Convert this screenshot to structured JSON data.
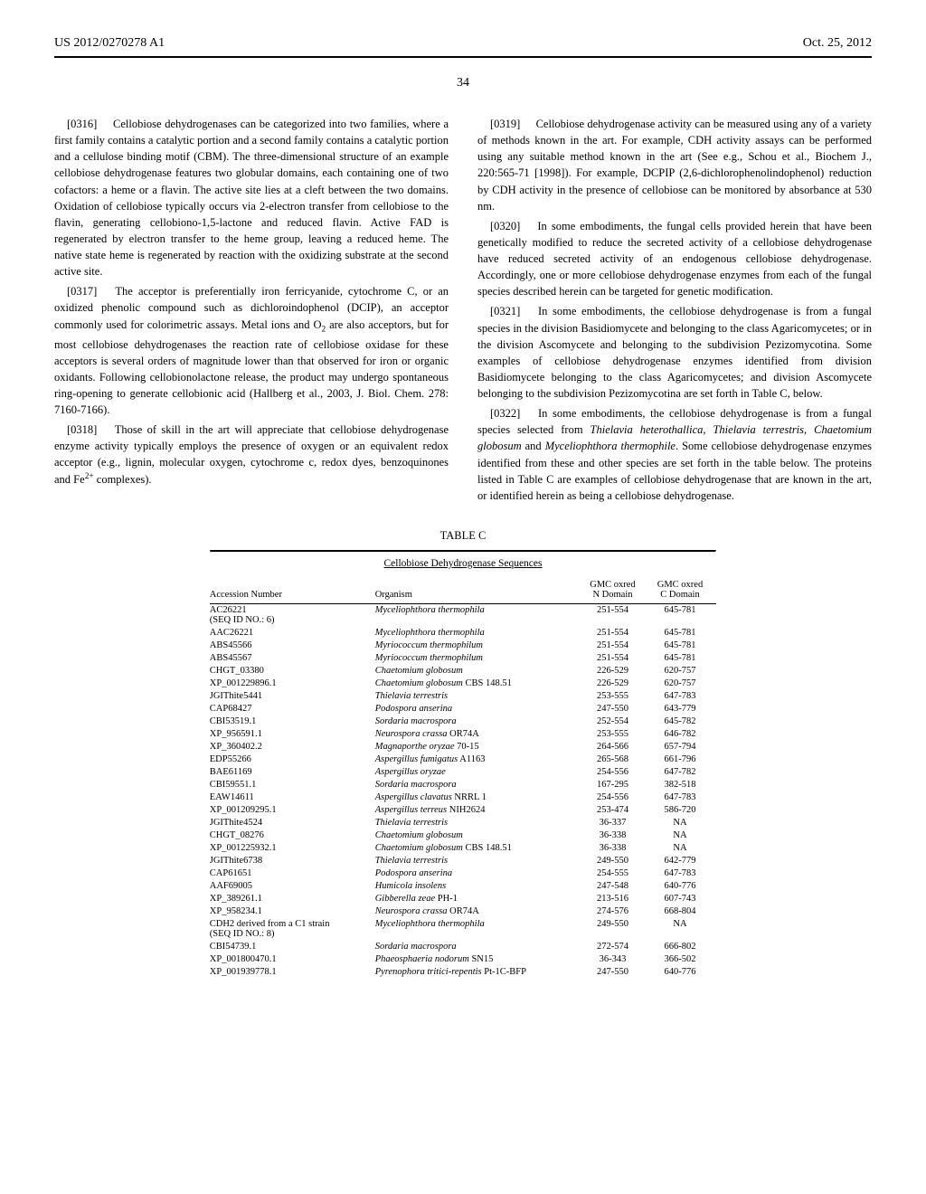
{
  "header": {
    "left": "US 2012/0270278 A1",
    "right": "Oct. 25, 2012"
  },
  "page_number": "34",
  "left_column": {
    "p1_label": "[0316]",
    "p1": "Cellobiose dehydrogenases can be categorized into two families, where a first family contains a catalytic portion and a second family contains a catalytic portion and a cellulose binding motif (CBM). The three-dimensional structure of an example cellobiose dehydrogenase features two globular domains, each containing one of two cofactors: a heme or a flavin. The active site lies at a cleft between the two domains. Oxidation of cellobiose typically occurs via 2-electron transfer from cellobiose to the flavin, generating cellobiono-1,5-lactone and reduced flavin. Active FAD is regenerated by electron transfer to the heme group, leaving a reduced heme. The native state heme is regenerated by reaction with the oxidizing substrate at the second active site.",
    "p2_label": "[0317]",
    "p2a": "The acceptor is preferentially iron ferricyanide, cytochrome C, or an oxidized phenolic compound such as dichloroindophenol (DCIP), an acceptor commonly used for colorimetric assays. Metal ions and O",
    "p2b": " are also acceptors, but for most cellobiose dehydrogenases the reaction rate of cellobiose oxidase for these acceptors is several orders of magnitude lower than that observed for iron or organic oxidants. Following cellobionolactone release, the product may undergo spontaneous ring-opening to generate cellobionic acid (Hallberg et al., 2003, J. Biol. Chem. 278: 7160-7166).",
    "p3_label": "[0318]",
    "p3a": "Those of skill in the art will appreciate that cellobiose dehydrogenase enzyme activity typically employs the presence of oxygen or an equivalent redox acceptor (e.g., lignin, molecular oxygen, cytochrome c, redox dyes, benzoquinones and Fe",
    "p3b": " complexes)."
  },
  "right_column": {
    "p1_label": "[0319]",
    "p1": "Cellobiose dehydrogenase activity can be measured using any of a variety of methods known in the art. For example, CDH activity assays can be performed using any suitable method known in the art (See e.g., Schou et al., Biochem J., 220:565-71 [1998]). For example, DCPIP (2,6-dichlorophenolindophenol) reduction by CDH activity in the presence of cellobiose can be monitored by absorbance at 530 nm.",
    "p2_label": "[0320]",
    "p2": "In some embodiments, the fungal cells provided herein that have been genetically modified to reduce the secreted activity of a cellobiose dehydrogenase have reduced secreted activity of an endogenous cellobiose dehydrogenase. Accordingly, one or more cellobiose dehydrogenase enzymes from each of the fungal species described herein can be targeted for genetic modification.",
    "p3_label": "[0321]",
    "p3": "In some embodiments, the cellobiose dehydrogenase is from a fungal species in the division Basidiomycete and belonging to the class Agaricomycetes; or in the division Ascomycete and belonging to the subdivision Pezizomycotina. Some examples of cellobiose dehydrogenase enzymes identified from division Basidiomycete belonging to the class Agaricomycetes; and division Ascomycete belonging to the subdivision Pezizomycotina are set forth in Table C, below.",
    "p4_label": "[0322]",
    "p4a": "In some embodiments, the cellobiose dehydrogenase is from a fungal species selected from ",
    "p4b": "Thielavia heterothallica, Thielavia terrestris, Chaetomium globosum",
    "p4c": " and ",
    "p4d": "Myceliophthora thermophile",
    "p4e": ". Some cellobiose dehydrogenase enzymes identified from these and other species are set forth in the table below. The proteins listed in Table C are examples of cellobiose dehydrogenase that are known in the art, or identified herein as being a cellobiose dehydrogenase."
  },
  "table": {
    "label": "TABLE C",
    "title": "Cellobiose Dehydrogenase Sequences",
    "columns": {
      "c1": "Accession Number",
      "c2": "Organism",
      "c3a": "GMC oxred",
      "c3b": "N Domain",
      "c4a": "GMC oxred",
      "c4b": "C Domain"
    },
    "rows": [
      {
        "acc": "AC26221",
        "acc2": "(SEQ ID NO.: 6)",
        "org": "Myceliophthora thermophila",
        "n": "251-554",
        "c": "645-781"
      },
      {
        "acc": "AAC26221",
        "org": "Myceliophthora thermophila",
        "n": "251-554",
        "c": "645-781"
      },
      {
        "acc": "ABS45566",
        "org": "Myriococcum thermophilum",
        "n": "251-554",
        "c": "645-781"
      },
      {
        "acc": "ABS45567",
        "org": "Myriococcum thermophilum",
        "n": "251-554",
        "c": "645-781"
      },
      {
        "acc": "CHGT_03380",
        "org": "Chaetomium globosum",
        "n": "226-529",
        "c": "620-757"
      },
      {
        "acc": "XP_001229896.1",
        "org": "Chaetomium globosum CBS 148.51",
        "org_plain_suffix": " CBS 148.51",
        "org_italic": "Chaetomium globosum",
        "n": "226-529",
        "c": "620-757"
      },
      {
        "acc": "JGIThite5441",
        "org": "Thielavia terrestris",
        "n": "253-555",
        "c": "647-783"
      },
      {
        "acc": "CAP68427",
        "org": "Podospora anserina",
        "n": "247-550",
        "c": "643-779"
      },
      {
        "acc": "CBI53519.1",
        "org": "Sordaria macrospora",
        "n": "252-554",
        "c": "645-782"
      },
      {
        "acc": "XP_956591.1",
        "org_italic": "Neurospora crassa",
        "org_plain_suffix": " OR74A",
        "n": "253-555",
        "c": "646-782"
      },
      {
        "acc": "XP_360402.2",
        "org_italic": "Magnaporthe oryzae",
        "org_plain_suffix": " 70-15",
        "n": "264-566",
        "c": "657-794"
      },
      {
        "acc": "EDP55266",
        "org_italic": "Aspergillus fumigatus",
        "org_plain_suffix": " A1163",
        "n": "265-568",
        "c": "661-796"
      },
      {
        "acc": "BAE61169",
        "org": "Aspergillus oryzae",
        "n": "254-556",
        "c": "647-782"
      },
      {
        "acc": "CBI59551.1",
        "org": "Sordaria macrospora",
        "n": "167-295",
        "c": "382-518"
      },
      {
        "acc": "EAW14611",
        "org_italic": "Aspergillus clavatus",
        "org_plain_suffix": " NRRL 1",
        "n": "254-556",
        "c": "647-783"
      },
      {
        "acc": "XP_001209295.1",
        "org_italic": "Aspergillus terreus",
        "org_plain_suffix": " NIH2624",
        "n": "253-474",
        "c": "586-720"
      },
      {
        "acc": "JGIThite4524",
        "org": "Thielavia terrestris",
        "n": "36-337",
        "c": "NA"
      },
      {
        "acc": "CHGT_08276",
        "org": "Chaetomium globosum",
        "n": "36-338",
        "c": "NA"
      },
      {
        "acc": "XP_001225932.1",
        "org_italic": "Chaetomium globosum",
        "org_plain_suffix": " CBS 148.51",
        "n": "36-338",
        "c": "NA"
      },
      {
        "acc": "JGIThite6738",
        "org": "Thielavia terrestris",
        "n": "249-550",
        "c": "642-779"
      },
      {
        "acc": "CAP61651",
        "org": "Podospora anserina",
        "n": "254-555",
        "c": "647-783"
      },
      {
        "acc": "AAF69005",
        "org": "Humicola insolens",
        "n": "247-548",
        "c": "640-776"
      },
      {
        "acc": "XP_389261.1",
        "org_italic": "Gibberella zeae",
        "org_plain_suffix": " PH-1",
        "n": "213-516",
        "c": "607-743"
      },
      {
        "acc": "XP_958234.1",
        "org_italic": "Neurospora crassa",
        "org_plain_suffix": " OR74A",
        "n": "274-576",
        "c": "668-804"
      },
      {
        "acc": "CDH2 derived from a C1 strain",
        "acc2": "(SEQ ID NO.: 8)",
        "org": "Myceliophthora thermophila",
        "n": "249-550",
        "c": "NA"
      },
      {
        "acc": "CBI54739.1",
        "org": "Sordaria macrospora",
        "n": "272-574",
        "c": "666-802"
      },
      {
        "acc": "XP_001800470.1",
        "org_italic": "Phaeosphaeria nodorum",
        "org_plain_suffix": " SN15",
        "n": "36-343",
        "c": "366-502"
      },
      {
        "acc": "XP_001939778.1",
        "org_italic": "Pyrenophora tritici-repentis",
        "org_plain_suffix": " Pt-1C-BFP",
        "n": "247-550",
        "c": "640-776"
      }
    ]
  }
}
